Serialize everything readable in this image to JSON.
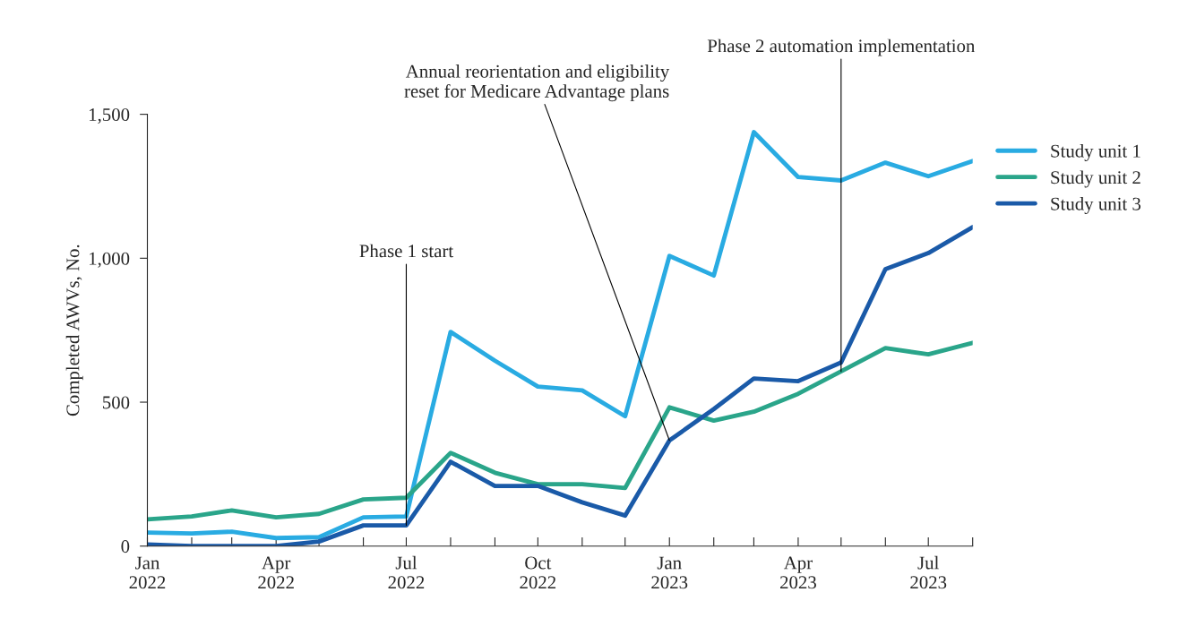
{
  "chart_data": {
    "type": "line",
    "ylabel": "Completed AWVs, No.",
    "x": [
      "2022-01",
      "2022-02",
      "2022-03",
      "2022-04",
      "2022-05",
      "2022-06",
      "2022-07",
      "2022-08",
      "2022-09",
      "2022-10",
      "2022-11",
      "2022-12",
      "2023-01",
      "2023-02",
      "2023-03",
      "2023-04",
      "2023-05",
      "2023-06",
      "2023-07",
      "2023-08"
    ],
    "series": [
      {
        "name": "Study unit 1",
        "color": "#29abe2",
        "values": [
          47,
          44,
          50,
          28,
          31,
          100,
          103,
          744,
          644,
          554,
          541,
          451,
          1008,
          940,
          1438,
          1282,
          1270,
          1332,
          1285,
          1338
        ]
      },
      {
        "name": "Study unit 2",
        "color": "#2aa58a",
        "values": [
          93,
          103,
          124,
          100,
          112,
          162,
          168,
          324,
          255,
          215,
          215,
          202,
          482,
          436,
          467,
          529,
          607,
          688,
          666,
          706
        ]
      },
      {
        "name": "Study unit 3",
        "color": "#1a5aa8",
        "values": [
          6,
          0,
          0,
          0,
          16,
          72,
          72,
          293,
          209,
          209,
          152,
          106,
          367,
          476,
          582,
          573,
          638,
          962,
          1018,
          1108
        ]
      }
    ],
    "xlim": [
      "2022-01",
      "2023-08"
    ],
    "xticks": [
      {
        "value": "2022-01",
        "label": "Jan\n2022"
      },
      {
        "value": "2022-02",
        "label": null
      },
      {
        "value": "2022-03",
        "label": null
      },
      {
        "value": "2022-04",
        "label": "Apr\n2022"
      },
      {
        "value": "2022-05",
        "label": null
      },
      {
        "value": "2022-06",
        "label": null
      },
      {
        "value": "2022-07",
        "label": "Jul\n2022"
      },
      {
        "value": "2022-08",
        "label": null
      },
      {
        "value": "2022-09",
        "label": null
      },
      {
        "value": "2022-10",
        "label": "Oct\n2022"
      },
      {
        "value": "2022-11",
        "label": null
      },
      {
        "value": "2022-12",
        "label": null
      },
      {
        "value": "2023-01",
        "label": "Jan\n2023"
      },
      {
        "value": "2023-02",
        "label": null
      },
      {
        "value": "2023-03",
        "label": null
      },
      {
        "value": "2023-04",
        "label": "Apr\n2023"
      },
      {
        "value": "2023-05",
        "label": null
      },
      {
        "value": "2023-06",
        "label": null
      },
      {
        "value": "2023-07",
        "label": "Jul\n2023"
      },
      {
        "value": "2023-08",
        "label": null
      }
    ],
    "ylim": [
      0,
      1500
    ],
    "yticks": [
      {
        "value": 0,
        "label": "0"
      },
      {
        "value": 500,
        "label": "500"
      },
      {
        "value": 1000,
        "label": "1,000"
      },
      {
        "value": 1500,
        "label": "1,500"
      }
    ],
    "annotations": [
      {
        "text": "Phase 1 start",
        "x": "2022-07",
        "y": 72
      },
      {
        "text": "Annual reorientation and eligibility\nreset for Medicare Advantage plans",
        "x": "2023-01",
        "y": 367
      },
      {
        "text": "Phase 2 automation implementation",
        "x": "2023-05",
        "y": 607
      }
    ],
    "legend": "right",
    "grid": false,
    "marker": "none",
    "line_style": "solid"
  }
}
